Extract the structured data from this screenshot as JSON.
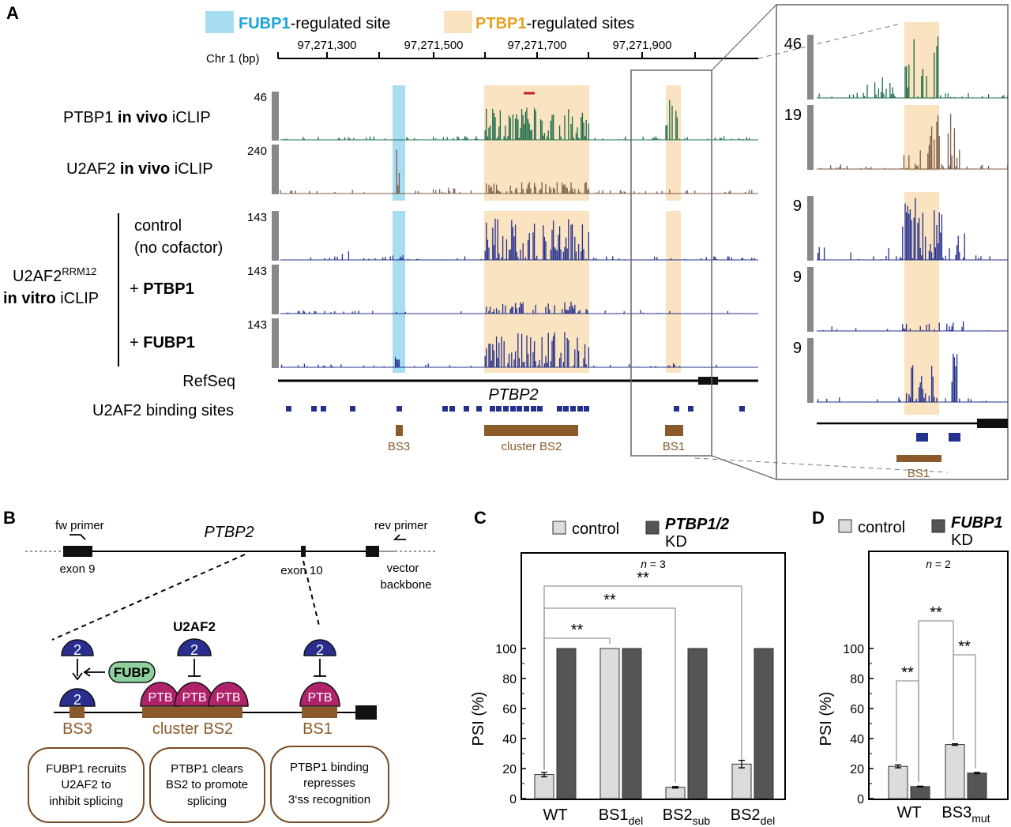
{
  "panels": {
    "A": "A",
    "B": "B",
    "C": "C",
    "D": "D"
  },
  "legend": {
    "fubp1": "FUBP1",
    "fubp1_suffix": "-regulated site",
    "ptbp1": "PTBP1",
    "ptbp1_suffix": "-regulated sites",
    "fubp1_color": "#a8dcf0",
    "ptbp1_color": "#fae3c0",
    "fubp1_text_color": "#1aa3d9",
    "ptbp1_text_color": "#e8a020"
  },
  "axis": {
    "chr": "Chr 1 (bp)",
    "ticks": [
      "97,271,300",
      "97,271,500",
      "97,271,700",
      "97,271,900"
    ]
  },
  "tracks": [
    {
      "label_a": "PTBP1 ",
      "label_b": "in vivo",
      "label_c": " iCLIP",
      "scale": "46",
      "zoom_scale": "46",
      "color": "#1a6b4a"
    },
    {
      "label_a": "U2AF2 ",
      "label_b": "in vivo",
      "label_c": " iCLIP",
      "scale": "240",
      "zoom_scale": "19",
      "color": "#7a5a48"
    },
    {
      "label_a": "control",
      "label_b": "(no cofactor)",
      "scale": "143",
      "zoom_scale": "9",
      "color": "#23308c"
    },
    {
      "label_a": "+ ",
      "label_b": "PTBP1",
      "scale": "143",
      "zoom_scale": "9",
      "color": "#23308c"
    },
    {
      "label_a": "+ ",
      "label_b": "FUBP1",
      "scale": "143",
      "zoom_scale": "9",
      "color": "#23308c"
    }
  ],
  "group_label": {
    "line1": "U2AF2",
    "sup": "RRM12",
    "bold": "in vitro",
    "rest": " iCLIP"
  },
  "refseq": {
    "label": "RefSeq",
    "gene": "PTBP2"
  },
  "binding_sites_label": "U2AF2 binding sites",
  "bs": {
    "bs3": "BS3",
    "bs2": "cluster BS2",
    "bs1": "BS1",
    "zoom_bs1": "BS1"
  },
  "panel_b": {
    "gene": "PTBP2",
    "fw": "fw primer",
    "rev": "rev primer",
    "exon9": "exon 9",
    "exon10": "exon 10",
    "vector": "vector",
    "backbone": "backbone",
    "u2af2": "U2AF2",
    "two": "2",
    "fubp": "FUBP",
    "ptb": "PTB",
    "bs3": "BS3",
    "bs2": "cluster BS2",
    "bs1": "BS1",
    "box1": [
      "FUBP1 recruits",
      "U2AF2 to",
      "inhibit splicing"
    ],
    "box2": [
      "PTBP1 clears",
      "BS2 to promote",
      "splicing"
    ],
    "box3": [
      "PTBP1 binding",
      "represses",
      "3‘ss recognition"
    ]
  },
  "chart_data": [
    {
      "type": "bar",
      "panel": "C",
      "ylabel": "PSI (%)",
      "ylim": [
        0,
        100
      ],
      "yticks": [
        "0",
        "20",
        "40",
        "60",
        "80",
        "100"
      ],
      "n_label": "n",
      "n_value": " = 3",
      "legend_control": "control",
      "legend_kd_bold": "PTBP1/2",
      "legend_kd": "KD",
      "categories": [
        {
          "main": "WT",
          "sub": ""
        },
        {
          "main": "BS1",
          "sub": "del"
        },
        {
          "main": "BS2",
          "sub": "sub"
        },
        {
          "main": "BS2",
          "sub": "del"
        }
      ],
      "series": [
        {
          "name": "control",
          "values": [
            16,
            100,
            7.5,
            23
          ],
          "errors": [
            1.5,
            0,
            0.5,
            2.5
          ],
          "color": "#dcdcdc"
        },
        {
          "name": "KD",
          "values": [
            100,
            100,
            100,
            100
          ],
          "errors": [
            0,
            0,
            0,
            0
          ],
          "color": "#555555"
        }
      ],
      "significance": [
        {
          "from": 0,
          "to": 1,
          "label": "**"
        },
        {
          "from": 0,
          "to": 2,
          "label": "**"
        },
        {
          "from": 0,
          "to": 3,
          "label": "**"
        }
      ]
    },
    {
      "type": "bar",
      "panel": "D",
      "ylabel": "PSI (%)",
      "ylim": [
        0,
        100
      ],
      "yticks": [
        "0",
        "20",
        "40",
        "60",
        "80",
        "100"
      ],
      "n_label": "n",
      "n_value": " = 2",
      "legend_control": "control",
      "legend_kd_bold": "FUBP1",
      "legend_kd": "KD",
      "categories": [
        {
          "main": "WT",
          "sub": ""
        },
        {
          "main": "BS3",
          "sub": "mut"
        }
      ],
      "series": [
        {
          "name": "control",
          "values": [
            21.5,
            36
          ],
          "errors": [
            1,
            0.5
          ],
          "color": "#dcdcdc"
        },
        {
          "name": "KD",
          "values": [
            8,
            17
          ],
          "errors": [
            0.3,
            0.5
          ],
          "color": "#555555"
        }
      ],
      "significance": [
        {
          "label": "**"
        },
        {
          "label": "**"
        },
        {
          "label": "**"
        }
      ]
    }
  ]
}
